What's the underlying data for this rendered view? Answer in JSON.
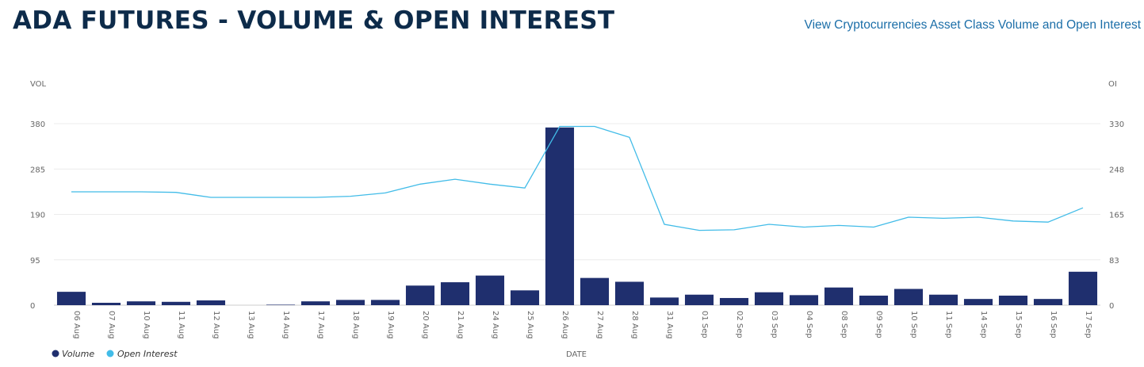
{
  "header": {
    "title": "ADA FUTURES - VOLUME & OPEN INTEREST",
    "link_text": "View Cryptocurrencies Asset Class Volume and Open Interest"
  },
  "colors": {
    "volume_bar": "#1f2f6e",
    "open_interest_line": "#42bce8",
    "gridline": "#ececec",
    "title": "#0d2b4a",
    "link": "#1b6ea8"
  },
  "chart_data": {
    "type": "bar",
    "categories": [
      "06 Aug",
      "07 Aug",
      "10 Aug",
      "11 Aug",
      "12 Aug",
      "13 Aug",
      "14 Aug",
      "17 Aug",
      "18 Aug",
      "19 Aug",
      "20 Aug",
      "21 Aug",
      "24 Aug",
      "25 Aug",
      "26 Aug",
      "27 Aug",
      "28 Aug",
      "31 Aug",
      "01 Sep",
      "02 Sep",
      "03 Sep",
      "04 Sep",
      "08 Sep",
      "09 Sep",
      "10 Sep",
      "11 Sep",
      "14 Sep",
      "15 Sep",
      "16 Sep",
      "17 Sep"
    ],
    "xlabel": "DATE",
    "y_left": {
      "label": "VOL",
      "ticks": [
        "0",
        "95",
        "190",
        "285",
        "380"
      ],
      "range": [
        0,
        380
      ]
    },
    "y_right": {
      "label": "OI",
      "ticks": [
        "0",
        "83",
        "165",
        "248",
        "330"
      ],
      "range": [
        0,
        330
      ]
    },
    "legend_position": "bottom-left",
    "grid": true,
    "series": [
      {
        "name": "Volume",
        "type": "bar",
        "axis": "left",
        "values": [
          28,
          5,
          8,
          7,
          10,
          0,
          1,
          8,
          11,
          11,
          41,
          48,
          62,
          31,
          372,
          57,
          49,
          16,
          22,
          15,
          27,
          21,
          37,
          20,
          34,
          22,
          13,
          20,
          13,
          70
        ]
      },
      {
        "name": "Open Interest",
        "type": "line",
        "axis": "right",
        "values": [
          206,
          206,
          206,
          205,
          196,
          196,
          196,
          196,
          198,
          204,
          220,
          229,
          220,
          213,
          325,
          325,
          305,
          147,
          136,
          137,
          147,
          142,
          145,
          142,
          160,
          158,
          160,
          153,
          151,
          177
        ]
      }
    ]
  }
}
